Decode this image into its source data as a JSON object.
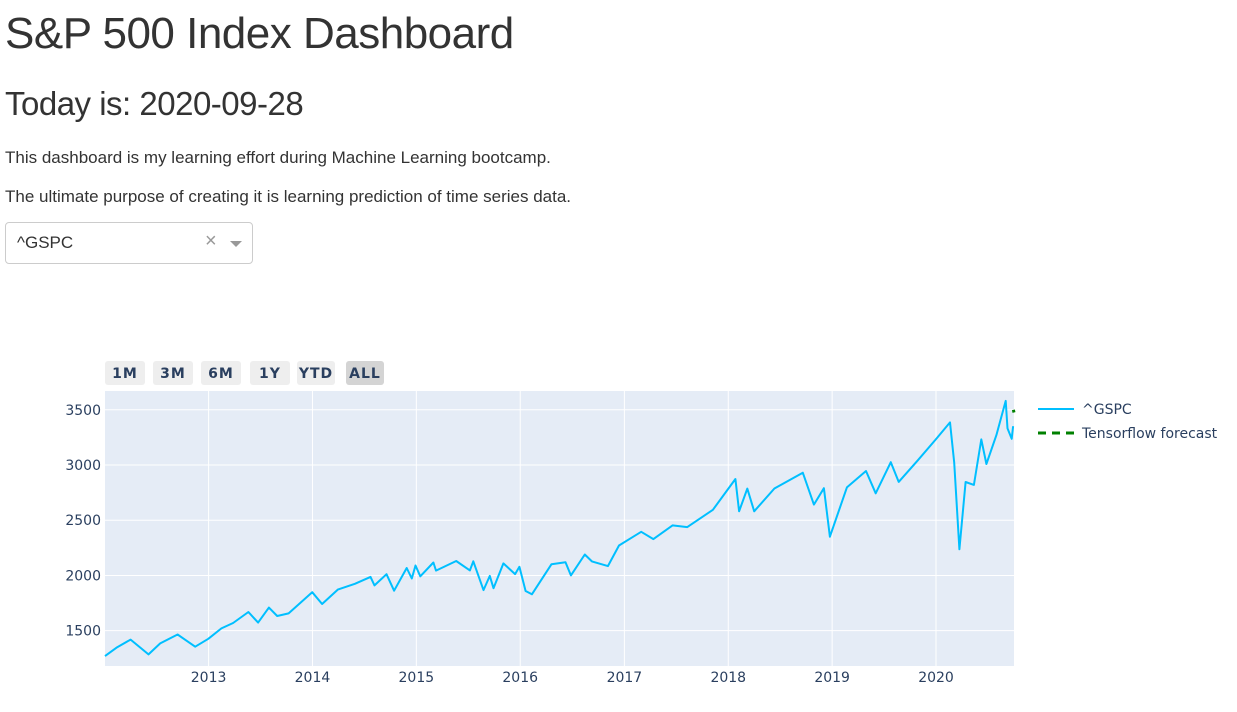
{
  "page": {
    "title": "S&P 500 Index Dashboard",
    "date_line": "Today is: 2020-09-28",
    "description_1": "This dashboard is my learning effort during Machine Learning bootcamp.",
    "description_2": "The ultimate purpose of creating it is learning prediction of time series data."
  },
  "dropdown": {
    "selected": "^GSPC",
    "clear_symbol": "×"
  },
  "range_selector": {
    "buttons": [
      "1M",
      "3M",
      "6M",
      "1Y",
      "YTD",
      "ALL"
    ],
    "active": "ALL"
  },
  "chart_data": {
    "type": "line",
    "title": "",
    "xlabel": "",
    "ylabel": "",
    "x_range": [
      "2012-01-03",
      "2020-10-01"
    ],
    "ylim": [
      1180,
      3670
    ],
    "x_ticks": [
      "2013",
      "2014",
      "2015",
      "2016",
      "2017",
      "2018",
      "2019",
      "2020"
    ],
    "y_ticks": [
      1500,
      2000,
      2500,
      3000,
      3500
    ],
    "grid": true,
    "legend_position": "right",
    "series": [
      {
        "name": "^GSPC",
        "color": "#00bfff",
        "dash": "solid",
        "x": [
          "2012-01-03",
          "2012-02-15",
          "2012-04-02",
          "2012-06-04",
          "2012-07-15",
          "2012-09-14",
          "2012-11-15",
          "2012-12-31",
          "2013-02-15",
          "2013-03-28",
          "2013-05-21",
          "2013-06-24",
          "2013-08-01",
          "2013-08-30",
          "2013-10-09",
          "2013-12-31",
          "2014-02-04",
          "2014-03-31",
          "2014-05-30",
          "2014-07-24",
          "2014-08-07",
          "2014-09-18",
          "2014-10-15",
          "2014-11-28",
          "2014-12-16",
          "2014-12-29",
          "2015-01-15",
          "2015-03-02",
          "2015-03-11",
          "2015-05-21",
          "2015-07-08",
          "2015-07-20",
          "2015-08-25",
          "2015-09-16",
          "2015-09-29",
          "2015-11-03",
          "2015-12-14",
          "2015-12-29",
          "2016-01-20",
          "2016-02-11",
          "2016-04-20",
          "2016-06-08",
          "2016-06-27",
          "2016-08-15",
          "2016-09-09",
          "2016-11-04",
          "2016-12-13",
          "2017-03-01",
          "2017-04-13",
          "2017-06-19",
          "2017-08-10",
          "2017-11-08",
          "2018-01-26",
          "2018-02-08",
          "2018-03-09",
          "2018-04-02",
          "2018-06-12",
          "2018-09-20",
          "2018-10-29",
          "2018-12-03",
          "2018-12-24",
          "2019-02-22",
          "2019-04-30",
          "2019-06-03",
          "2019-07-26",
          "2019-08-23",
          "2019-10-28",
          "2019-12-31",
          "2020-02-19",
          "2020-03-05",
          "2020-03-23",
          "2020-04-14",
          "2020-05-13",
          "2020-06-08",
          "2020-06-26",
          "2020-07-31",
          "2020-09-02",
          "2020-09-08",
          "2020-09-23",
          "2020-09-28"
        ],
        "y": [
          1270,
          1350,
          1419,
          1285,
          1385,
          1465,
          1355,
          1426,
          1520,
          1569,
          1669,
          1573,
          1709,
          1633,
          1656,
          1848,
          1741,
          1872,
          1924,
          1987,
          1910,
          2011,
          1862,
          2067,
          1972,
          2090,
          1992,
          2117,
          2044,
          2131,
          2046,
          2128,
          1867,
          1996,
          1884,
          2109,
          2012,
          2078,
          1859,
          1829,
          2102,
          2119,
          2000,
          2190,
          2127,
          2085,
          2271,
          2395,
          2329,
          2453,
          2438,
          2594,
          2873,
          2581,
          2786,
          2581,
          2787,
          2930,
          2641,
          2790,
          2351,
          2797,
          2946,
          2744,
          3025,
          2847,
          3039,
          3231,
          3386,
          3023,
          2237,
          2846,
          2820,
          3232,
          3009,
          3271,
          3580,
          3331,
          3237,
          3351
        ]
      },
      {
        "name": "Tensorflow forecast",
        "color": "#008000",
        "dash": "dash",
        "x": [
          "2020-09-29",
          "2020-10-01"
        ],
        "y": [
          3500,
          3475
        ]
      }
    ]
  }
}
